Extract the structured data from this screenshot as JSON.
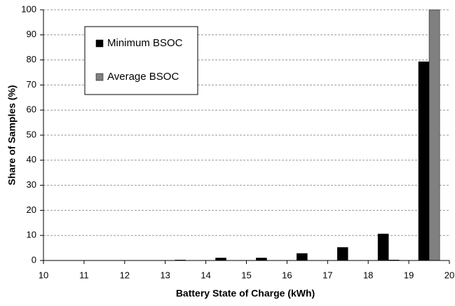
{
  "chart_data": {
    "type": "bar",
    "xlabel": "Battery State of Charge (kWh)",
    "ylabel": "Share of Samples (%)",
    "x": [
      10.5,
      11.5,
      12.5,
      13.5,
      14.5,
      15.5,
      16.5,
      17.5,
      18.5,
      19.5
    ],
    "series": [
      {
        "name": "Minimum BSOC",
        "color": "#000000",
        "values": [
          0,
          0,
          0,
          0.2,
          1,
          1,
          2.8,
          5.2,
          10.6,
          79.3
        ]
      },
      {
        "name": "Average BSOC",
        "color": "#808080",
        "values": [
          0,
          0,
          0,
          0,
          0,
          0,
          0,
          0,
          0.2,
          100
        ]
      }
    ],
    "xlim": [
      10,
      20
    ],
    "xticks": [
      10,
      11,
      12,
      13,
      14,
      15,
      16,
      17,
      18,
      19,
      20
    ],
    "ylim": [
      0,
      100
    ],
    "yticks": [
      0,
      10,
      20,
      30,
      40,
      50,
      60,
      70,
      80,
      90,
      100
    ],
    "grid": true,
    "legend_position": "upper left"
  }
}
